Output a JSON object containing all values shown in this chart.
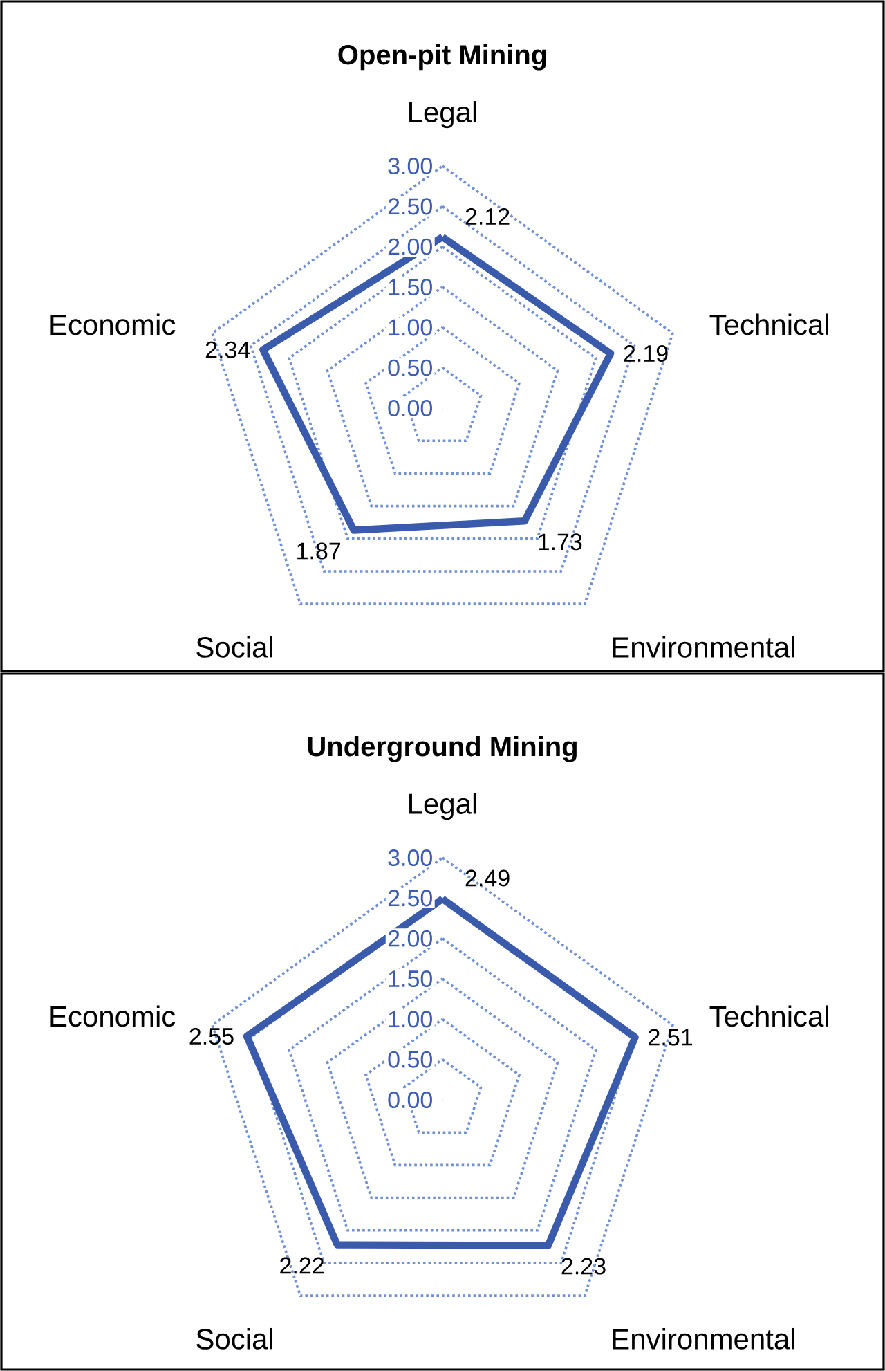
{
  "chart_data": [
    {
      "type": "radar",
      "title": "Open-pit Mining",
      "categories": [
        "Legal",
        "Technical",
        "Environmental",
        "Social",
        "Economic"
      ],
      "series": [
        {
          "color": "#3a5bab",
          "values": [
            2.12,
            2.19,
            1.73,
            1.87,
            2.34
          ]
        }
      ],
      "ylim": [
        0,
        3
      ],
      "yticks": [
        {
          "value": 0,
          "label": "0.00"
        },
        {
          "value": 0.5,
          "label": "0.50"
        },
        {
          "value": 1,
          "label": "1.00"
        },
        {
          "value": 1.5,
          "label": "1.50"
        },
        {
          "value": 2,
          "label": "2.00"
        },
        {
          "value": 2.5,
          "label": "2.50"
        },
        {
          "value": 3,
          "label": "3.00"
        }
      ],
      "grid": true,
      "data_labels": true,
      "line_style": "solid"
    },
    {
      "type": "radar",
      "title": "Underground Mining",
      "categories": [
        "Legal",
        "Technical",
        "Environmental",
        "Social",
        "Economic"
      ],
      "series": [
        {
          "color": "#3a5bab",
          "values": [
            2.49,
            2.51,
            2.23,
            2.22,
            2.55
          ]
        }
      ],
      "ylim": [
        0,
        3
      ],
      "yticks": [
        {
          "value": 0,
          "label": "0.00"
        },
        {
          "value": 0.5,
          "label": "0.50"
        },
        {
          "value": 1,
          "label": "1.00"
        },
        {
          "value": 1.5,
          "label": "1.50"
        },
        {
          "value": 2,
          "label": "2.00"
        },
        {
          "value": 2.5,
          "label": "2.50"
        },
        {
          "value": 3,
          "label": "3.00"
        }
      ],
      "grid": true,
      "data_labels": true,
      "line_style": "solid"
    }
  ]
}
